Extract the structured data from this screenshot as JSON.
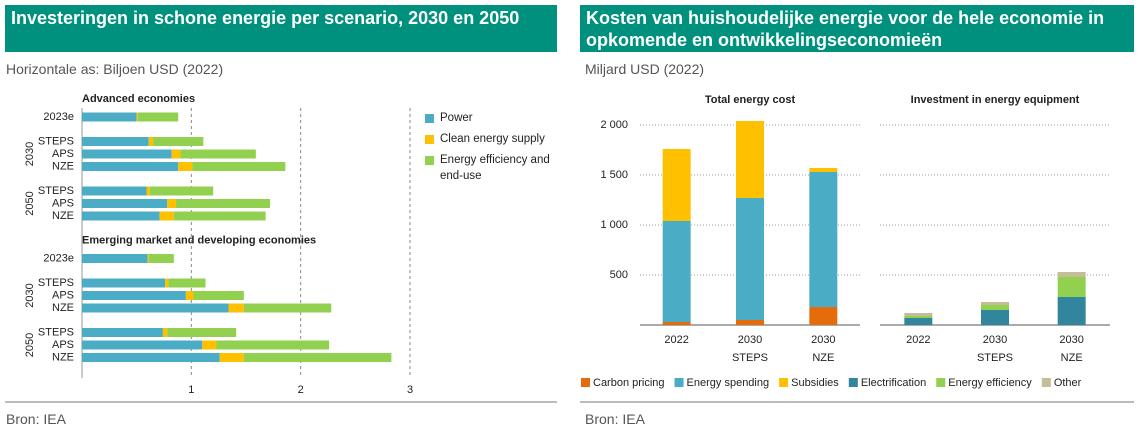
{
  "chart_data": [
    {
      "type": "bar",
      "orientation": "horizontal",
      "stacked": true,
      "title": "Investeringen in schone energie per scenario, 2030 en 2050",
      "subtitle": "Horizontale as: Biljoen USD (2022)",
      "source": "Bron: IEA",
      "xlim": [
        0,
        3
      ],
      "xticks": [
        1,
        2,
        3
      ],
      "grid": true,
      "panels": [
        {
          "title": "Advanced economies",
          "groups": [
            {
              "label": null,
              "categories": [
                "2023e"
              ]
            },
            {
              "label": "2030",
              "categories": [
                "STEPS",
                "APS",
                "NZE"
              ]
            },
            {
              "label": "2050",
              "categories": [
                "STEPS",
                "APS",
                "NZE"
              ]
            }
          ]
        },
        {
          "title": "Emerging market and developing economies",
          "groups": [
            {
              "label": null,
              "categories": [
                "2023e"
              ]
            },
            {
              "label": "2030",
              "categories": [
                "STEPS",
                "APS",
                "NZE"
              ]
            },
            {
              "label": "2050",
              "categories": [
                "STEPS",
                "APS",
                "NZE"
              ]
            }
          ]
        }
      ],
      "series": [
        {
          "name": "Power",
          "color": "#4bacc6",
          "values": [
            0.5,
            0.61,
            0.82,
            0.88,
            0.59,
            0.78,
            0.71,
            0.6,
            0.76,
            0.95,
            1.34,
            0.74,
            1.1,
            1.26
          ]
        },
        {
          "name": "Clean energy supply",
          "color": "#ffc000",
          "values": [
            0.01,
            0.04,
            0.08,
            0.13,
            0.03,
            0.08,
            0.13,
            0.01,
            0.03,
            0.07,
            0.14,
            0.04,
            0.13,
            0.22
          ]
        },
        {
          "name": "Energy efficiency and end-use",
          "color": "#92d050",
          "values": [
            0.37,
            0.46,
            0.69,
            0.85,
            0.58,
            0.86,
            0.84,
            0.23,
            0.34,
            0.46,
            0.8,
            0.63,
            1.03,
            1.35
          ]
        }
      ]
    },
    {
      "type": "bar",
      "stacked": true,
      "title": "Kosten van huishoudelijke energie voor de hele economie in opkomende en ontwikkelingseconomieën",
      "subtitle": "Miljard USD (2022)",
      "source": "Bron: IEA",
      "ylim": [
        0,
        2100
      ],
      "yticks": [
        500,
        {
          "value": 1000,
          "label": "1 000"
        },
        {
          "value": 1500,
          "label": "1 500"
        },
        {
          "value": 2000,
          "label": "2 000"
        }
      ],
      "grid": true,
      "panels": [
        {
          "title": "Total energy cost",
          "categories": [
            "2022",
            "2030",
            "2030"
          ],
          "subcategories": [
            null,
            "STEPS",
            "NZE"
          ],
          "series": [
            {
              "name": "Carbon pricing",
              "color": "#e46c0a",
              "values": [
                30,
                50,
                180
              ]
            },
            {
              "name": "Energy spending",
              "color": "#4bacc6",
              "values": [
                1010,
                1220,
                1350
              ]
            },
            {
              "name": "Subsidies",
              "color": "#ffc000",
              "values": [
                720,
                770,
                40
              ]
            }
          ]
        },
        {
          "title": "Investment in energy equipment",
          "categories": [
            "2022",
            "2030",
            "2030"
          ],
          "subcategories": [
            null,
            "STEPS",
            "NZE"
          ],
          "series": [
            {
              "name": "Electrification",
              "color": "#31859c",
              "values": [
                70,
                150,
                280
              ]
            },
            {
              "name": "Energy efficiency",
              "color": "#92d050",
              "values": [
                20,
                50,
                200
              ]
            },
            {
              "name": "Other",
              "color": "#c4bd97",
              "values": [
                30,
                30,
                50
              ]
            }
          ]
        }
      ]
    }
  ]
}
